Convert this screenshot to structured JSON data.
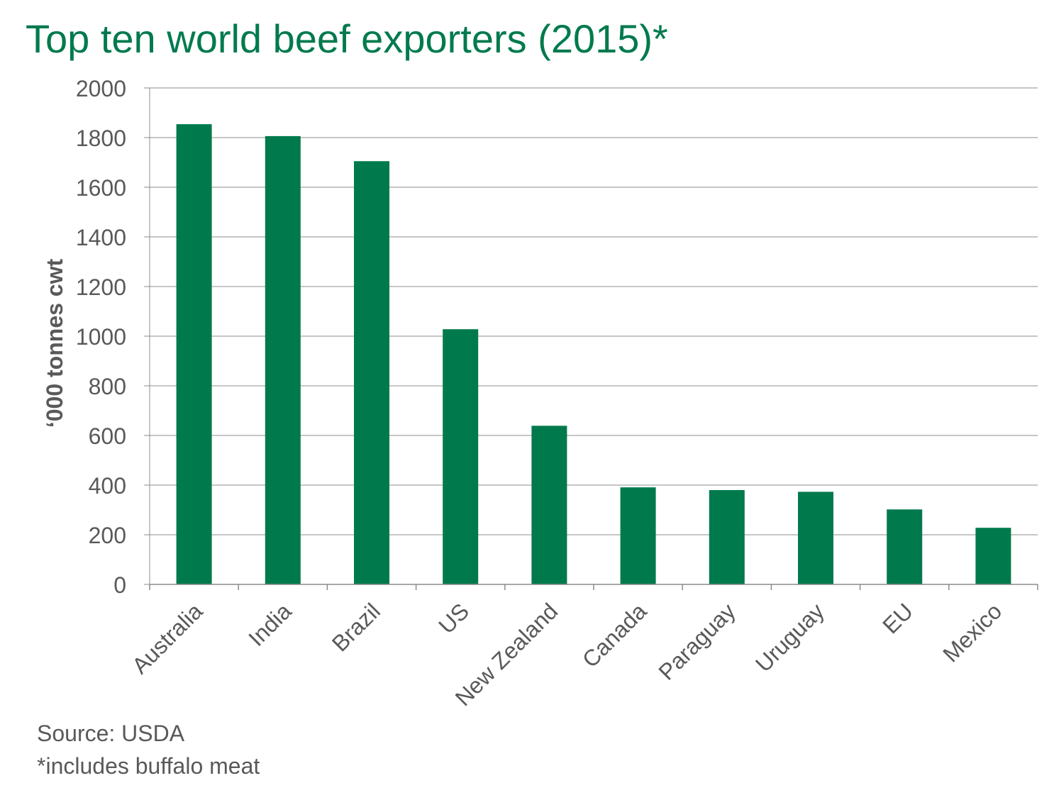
{
  "title": "Top ten world beef exporters (2015)*",
  "source": "Source: USDA",
  "footnote": "*includes buffalo meat",
  "colors": {
    "bar": "#007a4d",
    "title": "#007a4d",
    "text": "#595959",
    "grid": "#8c8c8c"
  },
  "chart_data": {
    "type": "bar",
    "title": "Top ten world beef exporters (2015)*",
    "xlabel": "",
    "ylabel": "‘000 tonnes cwt",
    "categories": [
      "Australia",
      "India",
      "Brazil",
      "US",
      "New Zealand",
      "Canada",
      "Paraguay",
      "Uruguay",
      "EU",
      "Mexico"
    ],
    "values": [
      1854,
      1806,
      1705,
      1028,
      639,
      391,
      380,
      373,
      302,
      228
    ],
    "ylim": [
      0,
      2000
    ],
    "yticks": [
      0,
      200,
      400,
      600,
      800,
      1000,
      1200,
      1400,
      1600,
      1800,
      2000
    ],
    "grid": true,
    "legend": "none"
  }
}
